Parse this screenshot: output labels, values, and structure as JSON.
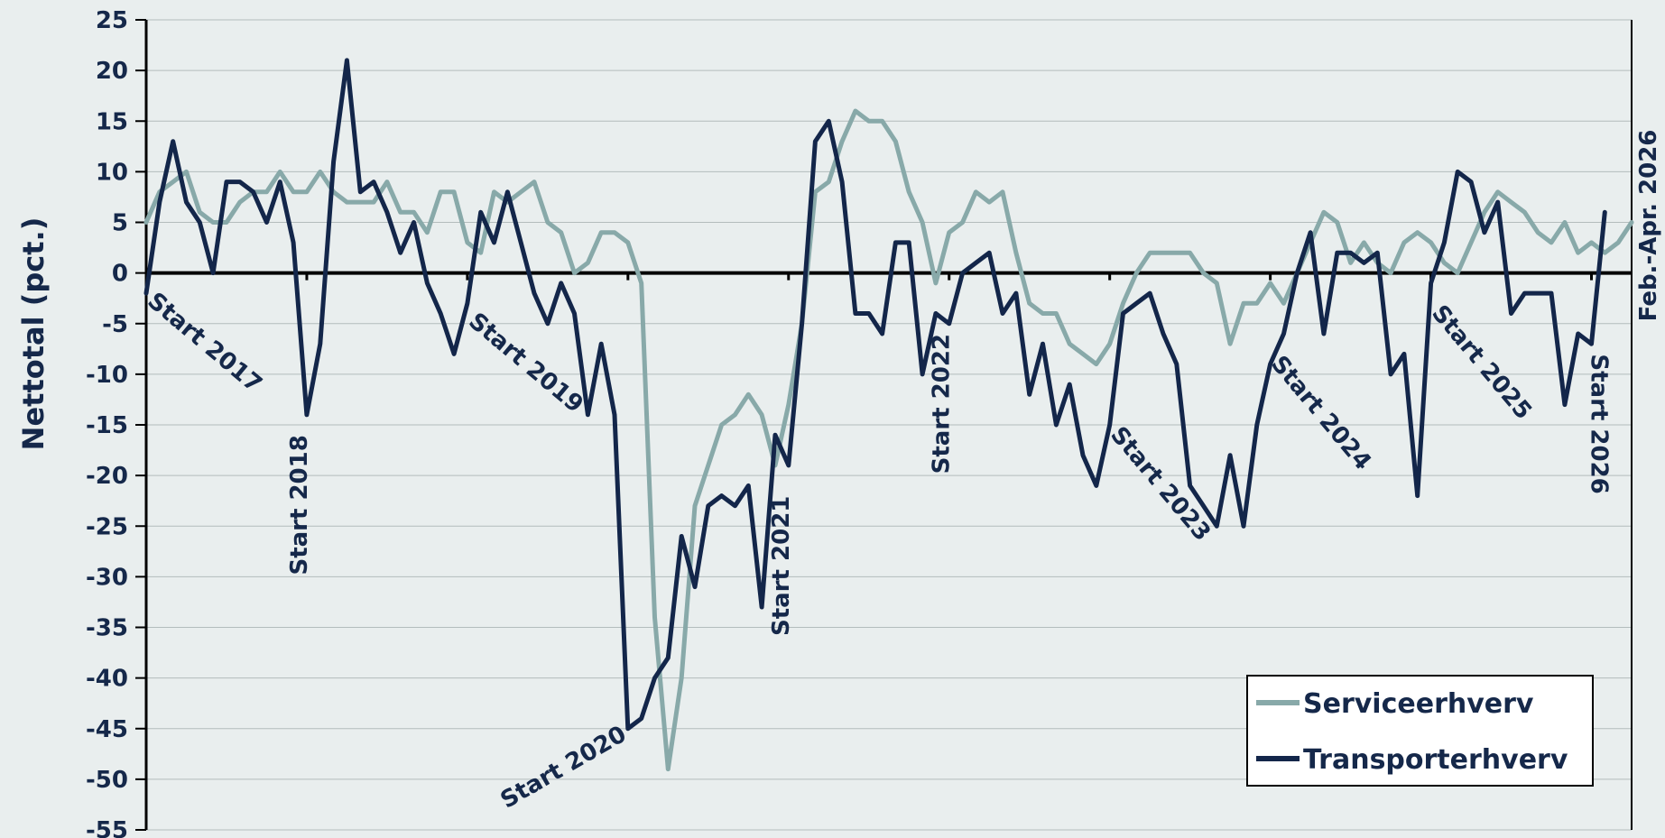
{
  "chart_data": {
    "type": "line",
    "ylabel": "Nettotal (pct.)",
    "ylim": [
      -55,
      25
    ],
    "y_ticks": [
      25,
      20,
      15,
      10,
      5,
      0,
      -5,
      -10,
      -15,
      -20,
      -25,
      -30,
      -35,
      -40,
      -45,
      -50,
      -55
    ],
    "grid": true,
    "legend_position": "bottom-right",
    "colors": {
      "series1": "#88a9a9",
      "series2": "#13264a",
      "background": "#e9eeee",
      "text": "#15284a"
    },
    "period_label": "Feb.-Apr. 2026",
    "series": [
      {
        "name": "Serviceerhverv",
        "values": [
          5,
          8,
          9,
          10,
          6,
          5,
          5,
          7,
          8,
          8,
          10,
          8,
          8,
          10,
          8,
          7,
          7,
          7,
          9,
          6,
          6,
          4,
          8,
          8,
          3,
          2,
          8,
          7,
          8,
          9,
          5,
          4,
          0,
          1,
          4,
          4,
          3,
          -1,
          -34,
          -49,
          -40,
          -23,
          -19,
          -15,
          -14,
          -12,
          -14,
          -19,
          -13,
          -5,
          8,
          9,
          13,
          16,
          15,
          15,
          13,
          8,
          5,
          -1,
          4,
          5,
          8,
          7,
          8,
          2,
          -3,
          -4,
          -4,
          -7,
          -8,
          -9,
          -7,
          -3,
          0,
          2,
          2,
          2,
          2,
          0,
          -1,
          -7,
          -3,
          -3,
          -1,
          -3,
          0,
          3,
          6,
          5,
          1,
          3,
          1,
          0,
          3,
          4,
          3,
          1,
          0,
          3,
          6,
          8,
          7,
          6,
          4,
          3,
          5,
          2,
          3,
          2,
          3,
          5
        ]
      },
      {
        "name": "Transporterhverv",
        "values": [
          -2,
          7,
          13,
          7,
          5,
          0,
          9,
          9,
          8,
          5,
          9,
          3,
          -14,
          -7,
          11,
          21,
          8,
          9,
          6,
          2,
          5,
          -1,
          -4,
          -8,
          -3,
          6,
          3,
          8,
          3,
          -2,
          -5,
          -1,
          -4,
          -14,
          -7,
          -14,
          -45,
          -44,
          -40,
          -38,
          -26,
          -31,
          -23,
          -22,
          -23,
          -21,
          -33,
          -16,
          -19,
          -5,
          13,
          15,
          9,
          -4,
          -4,
          -6,
          3,
          3,
          -10,
          -4,
          -5,
          0,
          1,
          2,
          -4,
          -2,
          -12,
          -7,
          -15,
          -11,
          -18,
          -21,
          -15,
          -4,
          -3,
          -2,
          -6,
          -9,
          -21,
          -23,
          -25,
          -18,
          -25,
          -15,
          -9,
          -6,
          0,
          4,
          -6,
          2,
          2,
          1,
          2,
          -10,
          -8,
          -22,
          -1,
          3,
          10,
          9,
          4,
          7,
          -4,
          -2,
          -2,
          -2,
          -13,
          -6,
          -7,
          6
        ]
      }
    ],
    "annotations": [
      {
        "text": "Start 2017",
        "index": 0,
        "value": -3,
        "angle": 40
      },
      {
        "text": "Start 2018",
        "index": 12,
        "value": -16,
        "angle": -90
      },
      {
        "text": "Start 2019",
        "index": 24,
        "value": -5,
        "angle": 40
      },
      {
        "text": "Start 2020",
        "index": 36,
        "value": -46,
        "angle": -30
      },
      {
        "text": "Start 2021",
        "index": 48,
        "value": -22,
        "angle": -90
      },
      {
        "text": "Start 2022",
        "index": 60,
        "value": -6,
        "angle": -90
      },
      {
        "text": "Start 2023",
        "index": 72,
        "value": -16,
        "angle": 50
      },
      {
        "text": "Start 2024",
        "index": 84,
        "value": -9,
        "angle": 50
      },
      {
        "text": "Start 2025",
        "index": 96,
        "value": -4,
        "angle": 50
      },
      {
        "text": "Start 2026",
        "index": 108,
        "value": -8,
        "angle": 90
      }
    ]
  }
}
